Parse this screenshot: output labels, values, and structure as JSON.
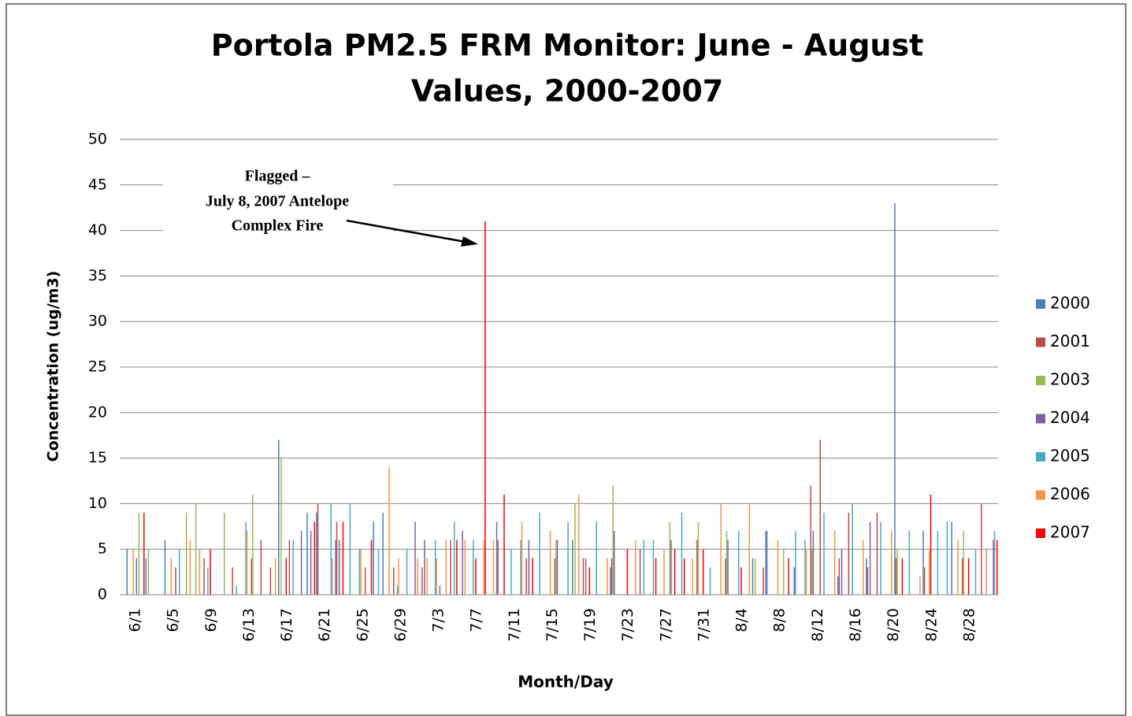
{
  "chart_data": {
    "type": "bar",
    "title": [
      "Portola PM2.5 FRM Monitor:  June - August",
      "Values, 2000-2007"
    ],
    "x_label": "Month/Day",
    "y_label": "Concentration (ug/m3)",
    "annotation": [
      "Flagged –",
      "July 8, 2007 Antelope",
      "Complex Fire"
    ],
    "categories": [
      "6/1",
      null,
      null,
      null,
      "6/5",
      null,
      null,
      null,
      "6/9",
      null,
      null,
      null,
      "6/13",
      null,
      null,
      null,
      "6/17",
      null,
      null,
      null,
      "6/21",
      null,
      null,
      null,
      "6/25",
      null,
      null,
      null,
      "6/29",
      null,
      null,
      null,
      "7/3",
      null,
      null,
      null,
      "7/7",
      null,
      null,
      null,
      "7/11",
      null,
      null,
      null,
      "7/15",
      null,
      null,
      null,
      "7/19",
      null,
      null,
      null,
      "7/23",
      null,
      null,
      null,
      "7/27",
      null,
      null,
      null,
      "7/31",
      null,
      null,
      null,
      "8/4",
      null,
      null,
      null,
      "8/8",
      null,
      null,
      null,
      "8/12",
      null,
      null,
      null,
      "8/16",
      null,
      null,
      null,
      "8/20",
      null,
      null,
      null,
      "8/24",
      null,
      null,
      null,
      "8/28",
      null,
      null,
      null
    ],
    "series": [
      {
        "name": "2000",
        "color": "#4a7ebb",
        "values": [
          5,
          4,
          4,
          null,
          6,
          null,
          null,
          null,
          null,
          null,
          null,
          null,
          null,
          null,
          null,
          null,
          17,
          null,
          null,
          9,
          9,
          null,
          6,
          null,
          null,
          null,
          8,
          9,
          null,
          null,
          null,
          null,
          null,
          1,
          null,
          null,
          null,
          null,
          null,
          8,
          null,
          null,
          null,
          null,
          null,
          null,
          null,
          6,
          null,
          null,
          null,
          3,
          null,
          null,
          null,
          null,
          null,
          null,
          null,
          null,
          null,
          null,
          null,
          null,
          null,
          null,
          4,
          null,
          null,
          null,
          null,
          null,
          null,
          null,
          null,
          2,
          null,
          null,
          4,
          null,
          null,
          43,
          null,
          null,
          7,
          null,
          null,
          8,
          null,
          null,
          null,
          null
        ]
      },
      {
        "name": "2001",
        "color": "#be4b48",
        "values": [
          null,
          null,
          null,
          null,
          null,
          3,
          null,
          null,
          4,
          null,
          null,
          3,
          null,
          4,
          6,
          3,
          null,
          6,
          null,
          null,
          10,
          null,
          8,
          null,
          null,
          3,
          null,
          null,
          3,
          null,
          null,
          3,
          null,
          null,
          6,
          null,
          null,
          null,
          null,
          6,
          null,
          null,
          4,
          null,
          null,
          4,
          null,
          null,
          4,
          null,
          null,
          4,
          null,
          null,
          5,
          null,
          null,
          null,
          null,
          null,
          6,
          null,
          null,
          4,
          null,
          null,
          null,
          3,
          null,
          null,
          null,
          null,
          12,
          17,
          null,
          4,
          9,
          null,
          3,
          9,
          null,
          4,
          null,
          null,
          3,
          null,
          null,
          null,
          4,
          null,
          10,
          null
        ]
      },
      {
        "name": "2003",
        "color": "#98b954",
        "values": [
          null,
          9,
          5,
          null,
          null,
          null,
          9,
          10,
          null,
          null,
          9,
          null,
          null,
          11,
          null,
          null,
          15,
          null,
          null,
          null,
          null,
          null,
          null,
          null,
          null,
          null,
          null,
          null,
          null,
          null,
          null,
          null,
          null,
          null,
          null,
          null,
          null,
          null,
          null,
          null,
          null,
          null,
          null,
          null,
          null,
          6,
          null,
          10,
          null,
          null,
          null,
          12,
          null,
          null,
          null,
          null,
          null,
          8,
          null,
          null,
          8,
          null,
          null,
          7,
          null,
          null,
          4,
          null,
          null,
          5,
          null,
          null,
          5,
          null,
          null,
          null,
          null,
          null,
          null,
          null,
          null,
          5,
          null,
          null,
          null,
          null,
          null,
          null,
          7,
          null,
          null,
          null
        ]
      },
      {
        "name": "2004",
        "color": "#7d60a0",
        "values": [
          null,
          null,
          null,
          null,
          null,
          null,
          null,
          null,
          null,
          null,
          null,
          null,
          null,
          null,
          null,
          null,
          null,
          null,
          7,
          7,
          null,
          null,
          6,
          null,
          null,
          null,
          null,
          null,
          null,
          null,
          8,
          6,
          null,
          null,
          null,
          7,
          null,
          null,
          null,
          null,
          null,
          null,
          6,
          null,
          null,
          6,
          null,
          null,
          4,
          null,
          null,
          7,
          null,
          null,
          null,
          null,
          null,
          6,
          null,
          null,
          null,
          null,
          null,
          6,
          null,
          null,
          null,
          7,
          null,
          null,
          3,
          null,
          7,
          null,
          null,
          5,
          null,
          null,
          8,
          null,
          null,
          null,
          null,
          null,
          null,
          null,
          null,
          null,
          null,
          null,
          null,
          6
        ]
      },
      {
        "name": "2005",
        "color": "#46aac5",
        "values": [
          null,
          null,
          null,
          null,
          null,
          5,
          null,
          null,
          3,
          null,
          null,
          1,
          8,
          null,
          null,
          null,
          null,
          6,
          null,
          null,
          null,
          10,
          null,
          10,
          5,
          null,
          5,
          null,
          1,
          5,
          null,
          null,
          6,
          null,
          8,
          null,
          6,
          null,
          null,
          null,
          5,
          6,
          null,
          9,
          null,
          null,
          8,
          null,
          null,
          8,
          null,
          null,
          null,
          null,
          6,
          6,
          null,
          null,
          9,
          null,
          null,
          3,
          null,
          null,
          7,
          null,
          null,
          7,
          null,
          null,
          7,
          6,
          null,
          9,
          null,
          null,
          10,
          null,
          null,
          8,
          null,
          null,
          7,
          null,
          null,
          7,
          8,
          null,
          null,
          5,
          null,
          7
        ]
      },
      {
        "name": "2006",
        "color": "#f69546",
        "values": [
          5,
          null,
          null,
          null,
          4,
          null,
          6,
          5,
          null,
          null,
          null,
          null,
          7,
          null,
          null,
          4,
          null,
          null,
          null,
          null,
          null,
          4,
          null,
          null,
          5,
          null,
          null,
          14,
          4,
          null,
          4,
          4,
          4,
          6,
          null,
          6,
          null,
          6,
          6,
          null,
          null,
          8,
          null,
          null,
          7,
          null,
          null,
          11,
          null,
          null,
          4,
          null,
          null,
          6,
          null,
          null,
          5,
          null,
          null,
          4,
          null,
          null,
          10,
          null,
          null,
          10,
          null,
          null,
          6,
          null,
          null,
          5,
          null,
          null,
          7,
          null,
          null,
          6,
          null,
          null,
          7,
          null,
          null,
          2,
          5,
          null,
          null,
          6,
          null,
          null,
          5,
          null
        ]
      },
      {
        "name": "2007",
        "color": "#ff0000",
        "values": [
          null,
          9,
          null,
          null,
          null,
          null,
          null,
          null,
          5,
          null,
          null,
          null,
          null,
          null,
          null,
          null,
          4,
          null,
          null,
          8,
          null,
          null,
          8,
          null,
          null,
          6,
          null,
          null,
          null,
          null,
          null,
          null,
          null,
          null,
          6,
          null,
          4,
          41,
          null,
          11,
          null,
          null,
          4,
          null,
          null,
          null,
          null,
          null,
          3,
          null,
          null,
          null,
          5,
          null,
          null,
          4,
          null,
          5,
          4,
          null,
          5,
          null,
          null,
          null,
          3,
          null,
          null,
          null,
          null,
          4,
          null,
          null,
          null,
          null,
          null,
          null,
          null,
          null,
          null,
          null,
          null,
          4,
          null,
          null,
          11,
          null,
          null,
          null,
          4,
          null,
          null,
          6
        ]
      }
    ],
    "ylim": [
      0,
      50
    ],
    "yticks": [
      0,
      5,
      10,
      15,
      20,
      25,
      30,
      35,
      40,
      45,
      50
    ],
    "grid": true,
    "legend": "right"
  }
}
